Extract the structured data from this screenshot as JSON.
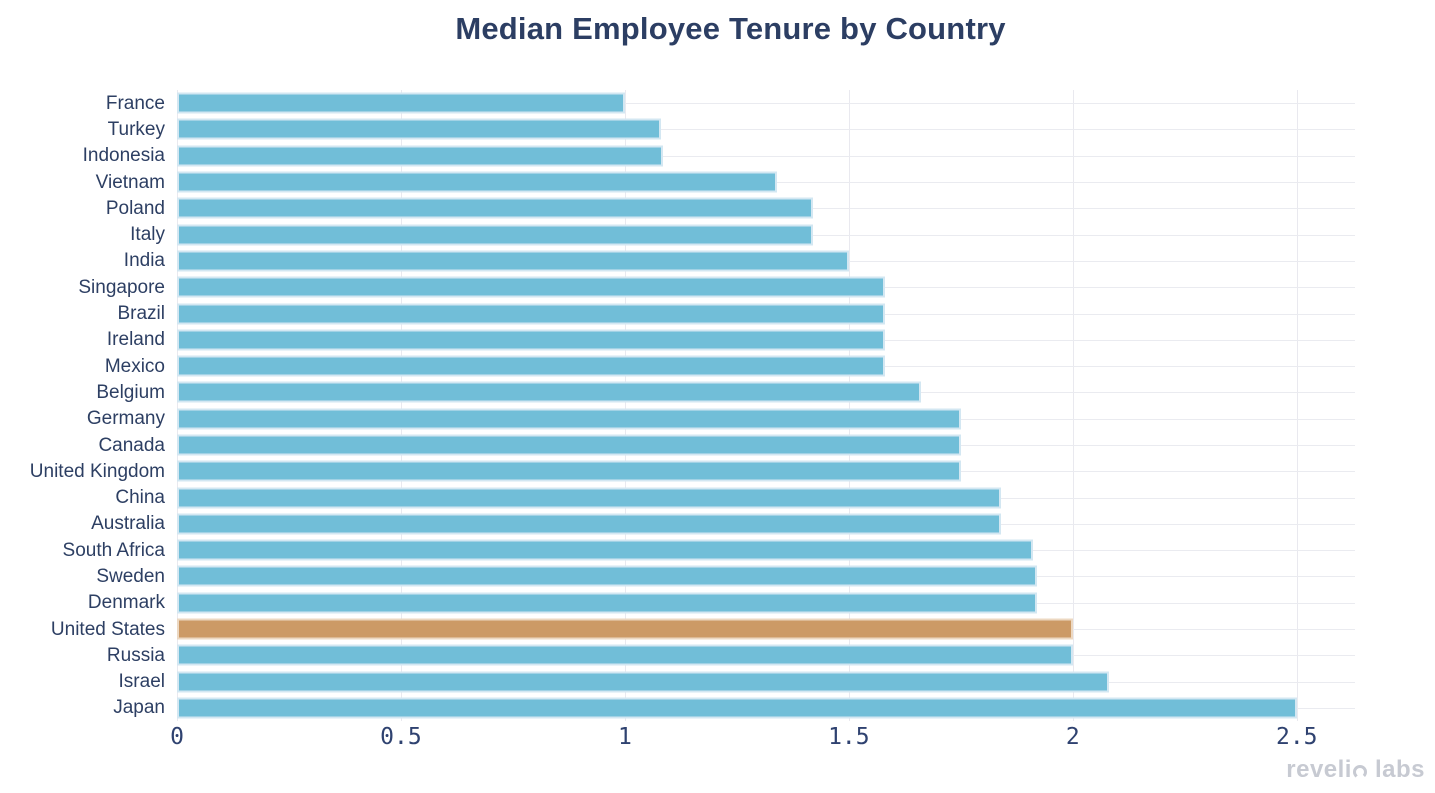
{
  "title": "Median Employee Tenure by Country",
  "watermark": {
    "full_text": "revelio labs",
    "before_o": "reveli",
    "after_o": "labs"
  },
  "colors": {
    "bar_blue": "#71bed8",
    "bar_highlight_orange": "#cc9a66",
    "title_navy": "#2c3e63",
    "label_navy": "#2d3f63",
    "tick_navy": "#2f4270",
    "gridline_gray": "#e9e9ef",
    "watermark_gray": "#c7cad2",
    "background": "#ffffff"
  },
  "chart_data": {
    "type": "bar",
    "orientation": "horizontal",
    "title": "Median Employee Tenure by Country",
    "xlabel": "",
    "ylabel": "",
    "categories": [
      "France",
      "Turkey",
      "Indonesia",
      "Vietnam",
      "Poland",
      "Italy",
      "India",
      "Singapore",
      "Brazil",
      "Ireland",
      "Mexico",
      "Belgium",
      "Germany",
      "Canada",
      "United Kingdom",
      "China",
      "Australia",
      "South Africa",
      "Sweden",
      "Denmark",
      "United States",
      "Russia",
      "Israel",
      "Japan"
    ],
    "values": [
      1.0,
      1.08,
      1.085,
      1.34,
      1.42,
      1.42,
      1.5,
      1.58,
      1.58,
      1.58,
      1.58,
      1.66,
      1.75,
      1.75,
      1.75,
      1.84,
      1.84,
      1.91,
      1.92,
      1.92,
      2.0,
      2.0,
      2.08,
      2.5
    ],
    "highlight_category": "United States",
    "xlim": [
      0,
      2.63
    ],
    "xticks": [
      0,
      0.5,
      1,
      1.5,
      2,
      2.5
    ],
    "xtick_labels": [
      "0",
      "0.5",
      "1",
      "1.5",
      "2",
      "2.5"
    ],
    "grid": true,
    "legend": false
  }
}
